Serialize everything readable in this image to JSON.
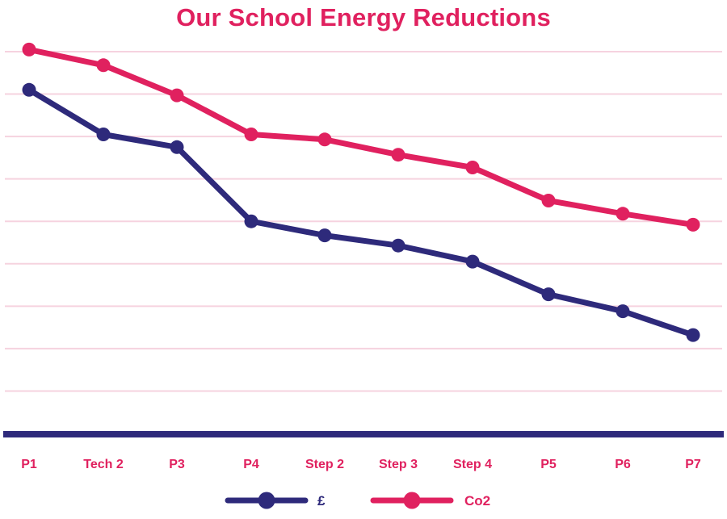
{
  "colors": {
    "title": "#e0215f",
    "pound": "#2e2a7b",
    "co2": "#e0215f",
    "grid": "#f6d3df",
    "axis": "#2e2a7b",
    "ticks": "#e0215f"
  },
  "chart_data": {
    "type": "line",
    "title": "Our School Energy Reductions",
    "xlabel": "",
    "ylabel": "",
    "categories": [
      "P1",
      "Tech 2",
      "P3",
      "P4",
      "Step 2",
      "Step 3",
      "Step 4",
      "P5",
      "P6",
      "P7"
    ],
    "ylim": [
      0,
      9
    ],
    "grid": true,
    "legend": "bottom-center",
    "series": [
      {
        "name": "£",
        "values": [
          8.1,
          7.05,
          6.75,
          5.0,
          4.67,
          4.43,
          4.05,
          3.28,
          2.88,
          2.32
        ]
      },
      {
        "name": "Co2",
        "values": [
          9.05,
          8.68,
          7.97,
          7.05,
          6.93,
          6.57,
          6.27,
          5.49,
          5.18,
          4.92
        ]
      }
    ]
  }
}
